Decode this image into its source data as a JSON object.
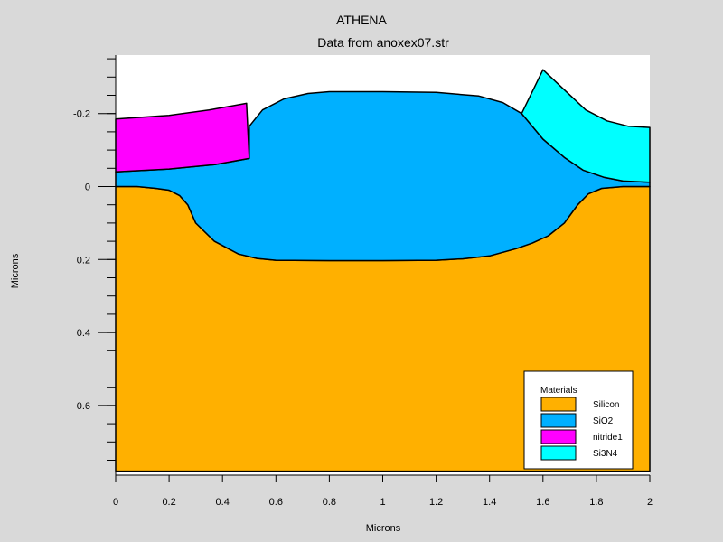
{
  "chart_data": {
    "type": "area",
    "title": "ATHENA",
    "subtitle": "Data from anoxex07.str",
    "xlabel": "Microns",
    "ylabel": "Microns",
    "xlim": [
      0,
      2
    ],
    "ylim": [
      -0.36,
      0.78
    ],
    "y_inverted": true,
    "x_ticks": [
      0,
      0.2,
      0.4,
      0.6,
      0.8,
      1,
      1.2,
      1.4,
      1.6,
      1.8,
      2
    ],
    "x_tick_labels": [
      "0",
      "0.2",
      "0.4",
      "0.6",
      "0.8",
      "1",
      "1.2",
      "1.4",
      "1.6",
      "1.8",
      "2"
    ],
    "y_ticks": [
      -0.2,
      0,
      0.2,
      0.4,
      0.6
    ],
    "y_tick_labels": [
      "-0.2",
      "0",
      "0.2",
      "0.4",
      "0.6"
    ],
    "y_minor_step": 0.05,
    "legend": {
      "title": "Materials",
      "placement": "bottom-right",
      "entries": [
        "Silicon",
        "SiO2",
        "nitride1",
        "Si3N4"
      ]
    },
    "series": [
      {
        "name": "Silicon",
        "color": "#ffb000",
        "polygon": [
          [
            0,
            0.78
          ],
          [
            0,
            0
          ],
          [
            0.08,
            0
          ],
          [
            0.15,
            0.005
          ],
          [
            0.2,
            0.01
          ],
          [
            0.24,
            0.025
          ],
          [
            0.27,
            0.05
          ],
          [
            0.3,
            0.1
          ],
          [
            0.37,
            0.15
          ],
          [
            0.46,
            0.185
          ],
          [
            0.53,
            0.197
          ],
          [
            0.6,
            0.202
          ],
          [
            0.8,
            0.203
          ],
          [
            1.0,
            0.203
          ],
          [
            1.2,
            0.202
          ],
          [
            1.3,
            0.198
          ],
          [
            1.4,
            0.19
          ],
          [
            1.5,
            0.17
          ],
          [
            1.56,
            0.155
          ],
          [
            1.62,
            0.135
          ],
          [
            1.68,
            0.1
          ],
          [
            1.73,
            0.05
          ],
          [
            1.77,
            0.02
          ],
          [
            1.82,
            0.005
          ],
          [
            1.9,
            0
          ],
          [
            2,
            0
          ],
          [
            2,
            0.78
          ]
        ]
      },
      {
        "name": "SiO2",
        "color": "#00b0ff",
        "polygon": [
          [
            0,
            0
          ],
          [
            0,
            -0.04
          ],
          [
            0.2,
            -0.048
          ],
          [
            0.37,
            -0.06
          ],
          [
            0.5,
            -0.077
          ],
          [
            0.5,
            -0.165
          ],
          [
            0.55,
            -0.21
          ],
          [
            0.63,
            -0.24
          ],
          [
            0.72,
            -0.255
          ],
          [
            0.8,
            -0.26
          ],
          [
            1.0,
            -0.26
          ],
          [
            1.2,
            -0.258
          ],
          [
            1.36,
            -0.248
          ],
          [
            1.45,
            -0.23
          ],
          [
            1.52,
            -0.2
          ],
          [
            1.6,
            -0.13
          ],
          [
            1.68,
            -0.08
          ],
          [
            1.75,
            -0.045
          ],
          [
            1.83,
            -0.025
          ],
          [
            1.9,
            -0.015
          ],
          [
            2,
            -0.012
          ],
          [
            2,
            0
          ],
          [
            1.9,
            0
          ],
          [
            1.82,
            0.005
          ],
          [
            1.77,
            0.02
          ],
          [
            1.73,
            0.05
          ],
          [
            1.68,
            0.1
          ],
          [
            1.62,
            0.135
          ],
          [
            1.56,
            0.155
          ],
          [
            1.5,
            0.17
          ],
          [
            1.4,
            0.19
          ],
          [
            1.3,
            0.198
          ],
          [
            1.2,
            0.202
          ],
          [
            1.0,
            0.203
          ],
          [
            0.8,
            0.203
          ],
          [
            0.6,
            0.202
          ],
          [
            0.53,
            0.197
          ],
          [
            0.46,
            0.185
          ],
          [
            0.37,
            0.15
          ],
          [
            0.3,
            0.1
          ],
          [
            0.27,
            0.05
          ],
          [
            0.24,
            0.025
          ],
          [
            0.2,
            0.01
          ],
          [
            0.15,
            0.005
          ],
          [
            0.08,
            0
          ]
        ]
      },
      {
        "name": "nitride1",
        "color": "#ff00ff",
        "polygon": [
          [
            0,
            -0.04
          ],
          [
            0,
            -0.185
          ],
          [
            0.2,
            -0.195
          ],
          [
            0.35,
            -0.21
          ],
          [
            0.49,
            -0.228
          ],
          [
            0.5,
            -0.077
          ],
          [
            0.37,
            -0.06
          ],
          [
            0.2,
            -0.048
          ]
        ]
      },
      {
        "name": "Si3N4",
        "color": "#00ffff",
        "polygon": [
          [
            1.52,
            -0.2
          ],
          [
            1.6,
            -0.32
          ],
          [
            1.68,
            -0.265
          ],
          [
            1.76,
            -0.21
          ],
          [
            1.84,
            -0.18
          ],
          [
            1.92,
            -0.165
          ],
          [
            2,
            -0.162
          ],
          [
            2,
            -0.012
          ],
          [
            1.9,
            -0.015
          ],
          [
            1.83,
            -0.025
          ],
          [
            1.75,
            -0.045
          ],
          [
            1.68,
            -0.08
          ],
          [
            1.6,
            -0.13
          ]
        ]
      }
    ]
  }
}
